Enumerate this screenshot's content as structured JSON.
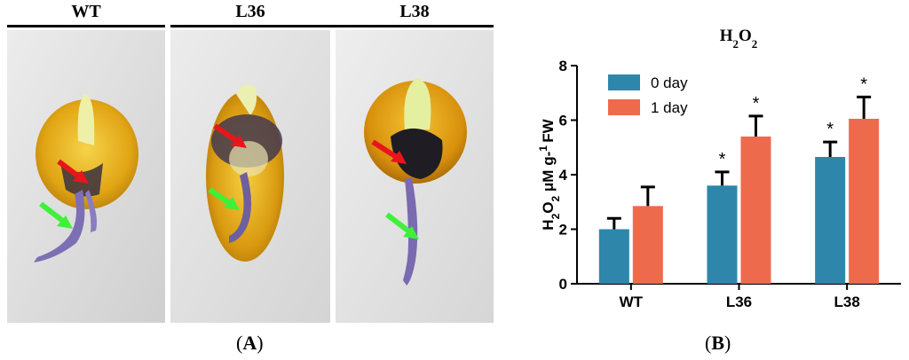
{
  "figure": {
    "panel_a": {
      "label": "A",
      "columns": [
        {
          "label": "WT"
        },
        {
          "label": "L36"
        },
        {
          "label": "L38"
        }
      ]
    },
    "panel_b": {
      "label": "B"
    }
  },
  "colors": {
    "day0": "#2e86ab",
    "day1": "#ee6a4c",
    "red_arrow": "#e8161b",
    "green_arrow": "#3ef03a",
    "kernel": "#e6b11a",
    "stain": "#2b2535",
    "root": "#7d6fb3"
  },
  "chart_data": {
    "type": "bar",
    "title": "H2O2",
    "ylabel": "H2O2 μM g-1 FW",
    "xlabel": "",
    "categories": [
      "WT",
      "L36",
      "L38"
    ],
    "ylim": [
      0,
      8
    ],
    "yticks": [
      0,
      2,
      4,
      6,
      8
    ],
    "legend_position": "top-left",
    "series": [
      {
        "name": "0 day",
        "values": [
          2.0,
          3.6,
          4.65
        ],
        "errors": [
          0.4,
          0.5,
          0.55
        ],
        "significance": [
          "",
          "*",
          "*"
        ]
      },
      {
        "name": "1 day",
        "values": [
          2.85,
          5.4,
          6.05
        ],
        "errors": [
          0.7,
          0.75,
          0.8
        ],
        "significance": [
          "",
          "*",
          "*"
        ]
      }
    ]
  }
}
